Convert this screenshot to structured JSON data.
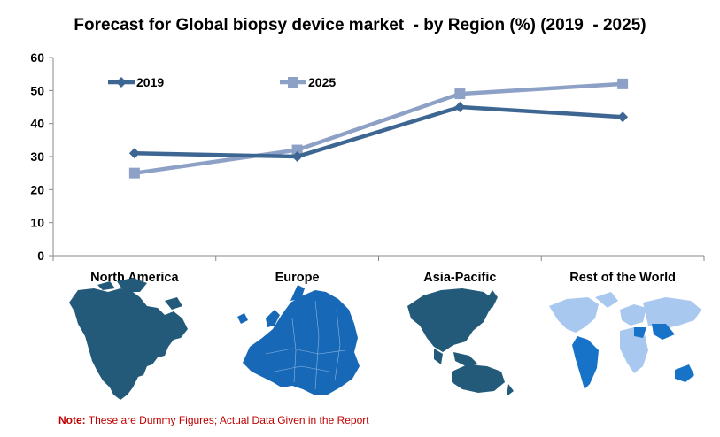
{
  "title": "Forecast for Global biopsy device market  - by Region (%) (2019  - 2025)",
  "note_label": "Note:",
  "note_text": " These are Dummy Figures; Actual Data Given in the Report",
  "chart_data": {
    "type": "line",
    "title": "Forecast for Global biopsy device market  - by Region (%) (2019  - 2025)",
    "categories": [
      "North America",
      "Europe",
      "Asia-Pacific",
      "Rest of the World"
    ],
    "series": [
      {
        "name": "2019",
        "values": [
          31,
          30,
          45,
          42
        ],
        "color": "#3e6693",
        "marker": "diamond"
      },
      {
        "name": "2025",
        "values": [
          25,
          32,
          49,
          52
        ],
        "color": "#8da1c7",
        "marker": "square"
      }
    ],
    "yticks": [
      0,
      10,
      20,
      30,
      40,
      50,
      60
    ],
    "ylim": [
      0,
      60
    ],
    "grid": false,
    "legend": "top-left",
    "category_images": [
      "north-america-map-icon",
      "europe-map-icon",
      "asia-pacific-map-icon",
      "world-map-icon"
    ]
  },
  "colors": {
    "map_dark": "#235a7a",
    "map_europe": "#1769b8",
    "map_world_light": "#a8c8f0",
    "map_world_dark": "#1673c8",
    "note": "#c00000"
  }
}
